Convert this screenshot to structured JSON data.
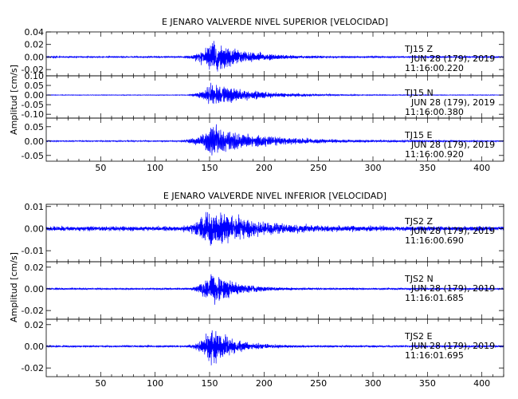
{
  "figure": {
    "ylabel": "Amplitud [cm/s]",
    "trace_color": "#0000ff"
  },
  "chart_data": [
    {
      "type": "line",
      "title": "E JENARO VALVERDE NIVEL SUPERIOR [VELOCIDAD]",
      "xlim": [
        0,
        420
      ],
      "xticks": [
        50,
        100,
        150,
        200,
        250,
        300,
        350,
        400
      ],
      "panels": [
        {
          "station": "TJ15",
          "component": "Z",
          "date": "JUN 28 (179), 2019",
          "time": "11:16:00.220",
          "ylim": [
            -0.03,
            0.04
          ],
          "yticks": [
            -0.02,
            0.0,
            0.02,
            0.04
          ],
          "yticklabels": [
            "-0.02",
            "0.00",
            "0.02",
            "0.04"
          ],
          "noise": 0.0012,
          "peak_amp": 0.028,
          "onset_s": 125,
          "peak_s": 152,
          "decay_s": 28,
          "freq": 1.6
        },
        {
          "station": "TJ15",
          "component": "N",
          "date": "JUN 28 (179), 2019",
          "time": "11:16:00.380",
          "ylim": [
            -0.12,
            0.1
          ],
          "yticks": [
            -0.1,
            -0.05,
            0.0,
            0.05,
            0.1
          ],
          "yticklabels": [
            "-0.10",
            "-0.05",
            "0.00",
            "0.05",
            "0.10"
          ],
          "noise": 0.002,
          "peak_amp": 0.065,
          "onset_s": 128,
          "peak_s": 152,
          "decay_s": 35,
          "freq": 1.3
        },
        {
          "station": "TJ15",
          "component": "E",
          "date": "JUN 28 (179), 2019",
          "time": "11:16:00.920",
          "ylim": [
            -0.07,
            0.08
          ],
          "yticks": [
            -0.05,
            0.0,
            0.05
          ],
          "yticklabels": [
            "-0.05",
            "0.00",
            "0.05"
          ],
          "noise": 0.0025,
          "peak_amp": 0.055,
          "onset_s": 122,
          "peak_s": 152,
          "decay_s": 45,
          "freq": 1.2
        }
      ]
    },
    {
      "type": "line",
      "title": "E JENARO VALVERDE NIVEL INFERIOR [VELOCIDAD]",
      "xlim": [
        0,
        420
      ],
      "xticks": [
        50,
        100,
        150,
        200,
        250,
        300,
        350,
        400
      ],
      "panels": [
        {
          "station": "TJS2",
          "component": "Z",
          "date": "JUN 28 (179), 2019",
          "time": "11:16:00.690",
          "ylim": [
            -0.015,
            0.011
          ],
          "yticks": [
            -0.01,
            0.0,
            0.01
          ],
          "yticklabels": [
            "-0.01",
            "0.00",
            "0.01"
          ],
          "noise": 0.0012,
          "peak_amp": 0.0095,
          "onset_s": 122,
          "peak_s": 150,
          "decay_s": 35,
          "freq": 2.0
        },
        {
          "station": "TJS2",
          "component": "N",
          "date": "JUN 28 (179), 2019",
          "time": "11:16:01.685",
          "ylim": [
            -0.028,
            0.025
          ],
          "yticks": [
            -0.02,
            0.0,
            0.02
          ],
          "yticklabels": [
            "-0.02",
            "0.00",
            "0.02"
          ],
          "noise": 0.0008,
          "peak_amp": 0.018,
          "onset_s": 130,
          "peak_s": 152,
          "decay_s": 20,
          "freq": 1.8
        },
        {
          "station": "TJS2",
          "component": "E",
          "date": "JUN 28 (179), 2019",
          "time": "11:16:01.695",
          "ylim": [
            -0.028,
            0.025
          ],
          "yticks": [
            -0.02,
            0.0,
            0.02
          ],
          "yticklabels": [
            "-0.02",
            "0.00",
            "0.02"
          ],
          "noise": 0.0008,
          "peak_amp": 0.019,
          "onset_s": 128,
          "peak_s": 152,
          "decay_s": 20,
          "freq": 1.8
        }
      ]
    }
  ]
}
